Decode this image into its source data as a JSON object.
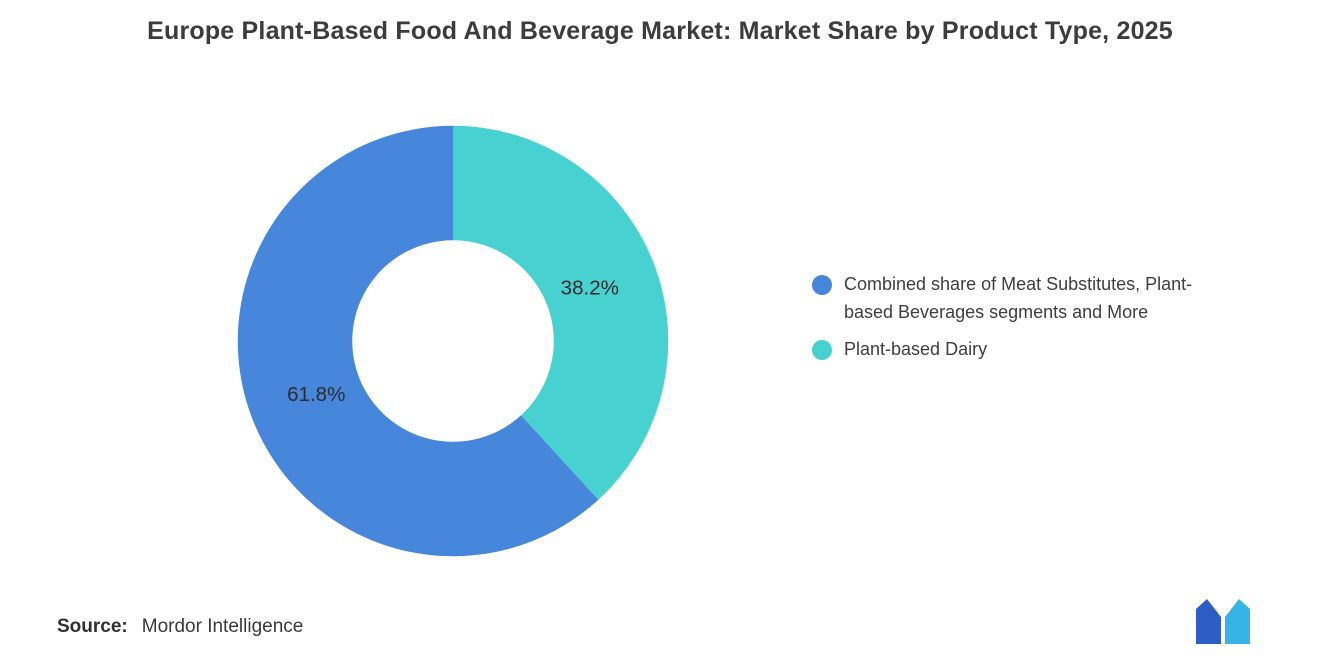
{
  "title": "Europe Plant-Based Food And Beverage Market: Market Share by Product Type, 2025",
  "chart_data": {
    "type": "pie",
    "subtype": "donut",
    "title": "Europe Plant-Based Food And Beverage Market: Market Share by Product Type, 2025",
    "inner_radius_ratio": 0.47,
    "start": "top",
    "legend_position": "right",
    "slices": [
      {
        "label": "Combined share of Meat Substitutes, Plant-based Beverages segments and More",
        "value": 61.8,
        "pct_label": "61.8%",
        "color": "#4787DB"
      },
      {
        "label": "Plant-based Dairy",
        "value": 38.2,
        "pct_label": "38.2%",
        "color": "#47D2D1"
      }
    ]
  },
  "source": {
    "label": "Source:",
    "value": "Mordor Intelligence"
  },
  "logo": {
    "name": "mordor-intelligence-logo",
    "color_dark": "#2D5EC6",
    "color_light": "#35B4E5"
  }
}
